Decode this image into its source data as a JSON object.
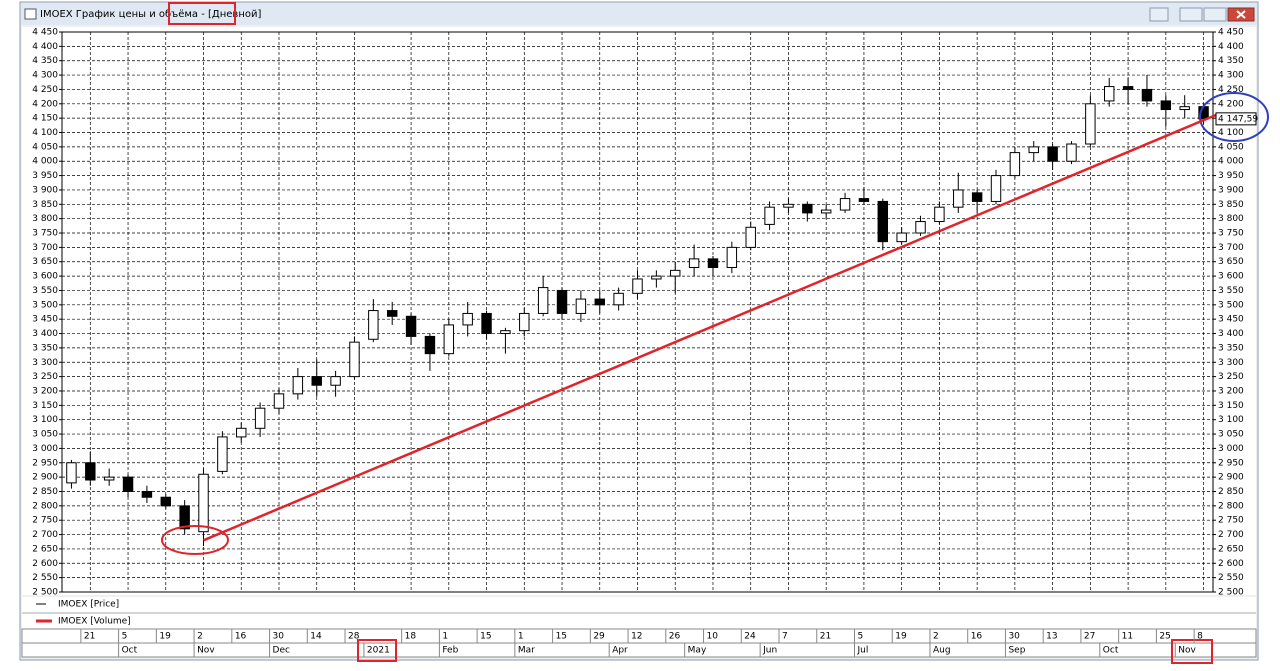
{
  "window": {
    "title": "IMOEX График цены и объёма - ",
    "timeframe": "[Дневной]"
  },
  "chart_data": {
    "type": "candlestick",
    "categories": [
      null,
      "21",
      null,
      "5",
      null,
      "19",
      null,
      "2",
      null,
      "16",
      null,
      "30",
      null,
      "14",
      null,
      "28",
      null,
      null,
      "18",
      null,
      "1",
      null,
      "15",
      null,
      "1",
      null,
      "15",
      null,
      "29",
      null,
      "12",
      null,
      "26",
      null,
      "10",
      null,
      "24",
      null,
      "7",
      null,
      "21",
      null,
      "5",
      null,
      "19",
      null,
      "2",
      null,
      "16",
      null,
      "30",
      null,
      "13",
      null,
      "27",
      null,
      "11",
      null,
      "25",
      null,
      "8"
    ],
    "month_labels": [
      null,
      null,
      null,
      "Oct",
      null,
      null,
      null,
      "Nov",
      null,
      null,
      null,
      "Dec",
      null,
      null,
      null,
      null,
      "2021",
      null,
      null,
      null,
      "Feb",
      null,
      null,
      null,
      "Mar",
      null,
      null,
      null,
      null,
      "Apr",
      null,
      null,
      null,
      "May",
      null,
      null,
      null,
      "Jun",
      null,
      null,
      null,
      null,
      "Jul",
      null,
      null,
      null,
      "Aug",
      null,
      null,
      null,
      "Sep",
      null,
      null,
      null,
      null,
      "Oct",
      null,
      null,
      null,
      "Nov",
      null
    ],
    "open": [
      2880,
      2950,
      2890,
      2900,
      2850,
      2830,
      2800,
      2710,
      2920,
      3040,
      3070,
      3140,
      3190,
      3250,
      3220,
      3250,
      3380,
      3480,
      3460,
      3390,
      3330,
      3430,
      3470,
      3400,
      3410,
      3470,
      3550,
      3470,
      3520,
      3500,
      3540,
      3590,
      3600,
      3630,
      3660,
      3630,
      3700,
      3780,
      3840,
      3850,
      3820,
      3830,
      3870,
      3860,
      3720,
      3750,
      3790,
      3840,
      3890,
      3860,
      3950,
      4030,
      4050,
      4000,
      4060,
      4210,
      4260,
      4250,
      4210,
      4180,
      4190
    ],
    "high": [
      2960,
      2990,
      2930,
      2910,
      2870,
      2840,
      2820,
      2930,
      3060,
      3090,
      3160,
      3210,
      3280,
      3310,
      3270,
      3390,
      3520,
      3510,
      3470,
      3400,
      3450,
      3510,
      3480,
      3420,
      3490,
      3600,
      3560,
      3550,
      3550,
      3560,
      3620,
      3620,
      3650,
      3710,
      3670,
      3720,
      3790,
      3860,
      3870,
      3860,
      3850,
      3890,
      3910,
      3870,
      3770,
      3810,
      3860,
      3960,
      3900,
      3970,
      4050,
      4070,
      4060,
      4070,
      4230,
      4290,
      4290,
      4300,
      4230,
      4230,
      4200
    ],
    "low": [
      2860,
      2870,
      2870,
      2830,
      2810,
      2790,
      2700,
      2660,
      2910,
      3020,
      3040,
      3120,
      3170,
      3180,
      3180,
      3240,
      3370,
      3430,
      3360,
      3270,
      3320,
      3390,
      3380,
      3330,
      3390,
      3460,
      3450,
      3440,
      3470,
      3480,
      3520,
      3560,
      3540,
      3600,
      3600,
      3610,
      3690,
      3760,
      3820,
      3790,
      3800,
      3820,
      3850,
      3690,
      3710,
      3740,
      3780,
      3820,
      3820,
      3850,
      3940,
      4000,
      3970,
      3990,
      4050,
      4190,
      4200,
      4190,
      4120,
      4150,
      4130
    ],
    "close": [
      2950,
      2890,
      2900,
      2850,
      2830,
      2800,
      2720,
      2910,
      3040,
      3070,
      3140,
      3190,
      3250,
      3220,
      3250,
      3370,
      3480,
      3460,
      3390,
      3330,
      3430,
      3470,
      3400,
      3410,
      3470,
      3560,
      3470,
      3520,
      3500,
      3540,
      3590,
      3600,
      3620,
      3660,
      3630,
      3700,
      3770,
      3840,
      3850,
      3820,
      3830,
      3870,
      3860,
      3720,
      3750,
      3790,
      3840,
      3900,
      3860,
      3950,
      4030,
      4050,
      4000,
      4060,
      4200,
      4260,
      4250,
      4210,
      4180,
      4190,
      4147.59
    ],
    "last_price": {
      "value": 4147.59,
      "label": "4 147,59"
    },
    "legend": [
      {
        "name": "IMOEX [Price]",
        "color": "#000000"
      },
      {
        "name": "IMOEX [Volume]",
        "color": "#e0242b"
      }
    ],
    "trendline": {
      "x": [
        7,
        60.8
      ],
      "y": [
        2680,
        4165
      ],
      "color": "#e0242b"
    },
    "ylim": [
      2500,
      4450
    ],
    "yticks": [
      {
        "value": 2500,
        "label": "2 500"
      },
      {
        "value": 2550,
        "label": "2 550"
      },
      {
        "value": 2600,
        "label": "2 600"
      },
      {
        "value": 2650,
        "label": "2 650"
      },
      {
        "value": 2700,
        "label": "2 700"
      },
      {
        "value": 2750,
        "label": "2 750"
      },
      {
        "value": 2800,
        "label": "2 800"
      },
      {
        "value": 2850,
        "label": "2 850"
      },
      {
        "value": 2900,
        "label": "2 900"
      },
      {
        "value": 2950,
        "label": "2 950"
      },
      {
        "value": 3000,
        "label": "3 000"
      },
      {
        "value": 3050,
        "label": "3 050"
      },
      {
        "value": 3100,
        "label": "3 100"
      },
      {
        "value": 3150,
        "label": "3 150"
      },
      {
        "value": 3200,
        "label": "3 200"
      },
      {
        "value": 3250,
        "label": "3 250"
      },
      {
        "value": 3300,
        "label": "3 300"
      },
      {
        "value": 3350,
        "label": "3 350"
      },
      {
        "value": 3400,
        "label": "3 400"
      },
      {
        "value": 3450,
        "label": "3 450"
      },
      {
        "value": 3500,
        "label": "3 500"
      },
      {
        "value": 3550,
        "label": "3 550"
      },
      {
        "value": 3600,
        "label": "3 600"
      },
      {
        "value": 3650,
        "label": "3 650"
      },
      {
        "value": 3700,
        "label": "3 700"
      },
      {
        "value": 3750,
        "label": "3 750"
      },
      {
        "value": 3800,
        "label": "3 800"
      },
      {
        "value": 3850,
        "label": "3 850"
      },
      {
        "value": 3900,
        "label": "3 900"
      },
      {
        "value": 3950,
        "label": "3 950"
      },
      {
        "value": 4000,
        "label": "4 000"
      },
      {
        "value": 4050,
        "label": "4 050"
      },
      {
        "value": 4100,
        "label": "4 100"
      },
      {
        "value": 4150,
        "label": "4 150"
      },
      {
        "value": 4200,
        "label": "4 200"
      },
      {
        "value": 4250,
        "label": "4 250"
      },
      {
        "value": 4300,
        "label": "4 300"
      },
      {
        "value": 4350,
        "label": "4 350"
      },
      {
        "value": 4400,
        "label": "4 400"
      },
      {
        "value": 4450,
        "label": "4 450"
      }
    ],
    "grid": true
  }
}
